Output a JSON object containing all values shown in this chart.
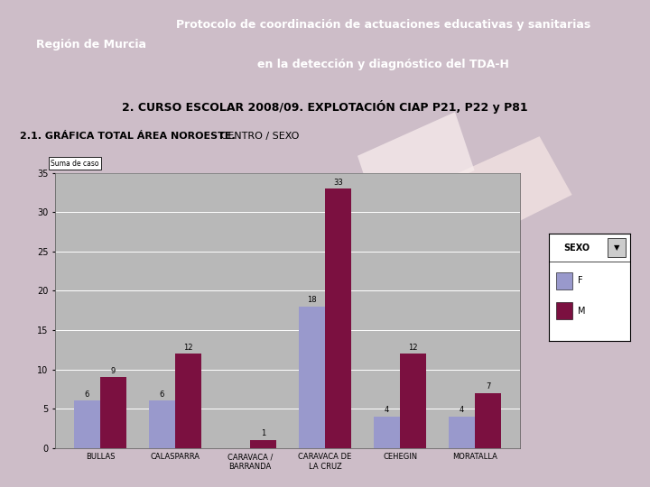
{
  "title_line1": "Protocolo de coordinación de actuaciones educativas y sanitarias",
  "title_line2": "en la detección y diagnóstico del TDA-H",
  "region_label": "Región de Murcia",
  "subtitle": "2. CURSO ESCOLAR 2008/09. EXPLOTACIÓN CIAP P21, P22 y P81",
  "chart_title_bold": "2.1. GRÁFICA TOTAL ÁREA NOROESTE.",
  "chart_title_normal": " CENTRO / SEXO",
  "ylabel": "Suma de caso",
  "categories": [
    "BULLAS",
    "CALASPARRA",
    "CARAVACA /\nBARRANDA",
    "CARAVACA DE\nLA CRUZ",
    "CEHEGIN",
    "MORATALLA"
  ],
  "F_values": [
    6,
    6,
    0,
    18,
    4,
    4
  ],
  "M_values": [
    9,
    12,
    1,
    33,
    12,
    7
  ],
  "F_color": "#9999cc",
  "M_color": "#7b1040",
  "header_bg": "#1155a0",
  "header_text_color": "#ffffff",
  "subtitle_bg": "#1155a0",
  "plot_bg": "#b8b8b8",
  "ylim": [
    0,
    35
  ],
  "yticks": [
    0,
    5,
    10,
    15,
    20,
    25,
    30,
    35
  ],
  "legend_sexo": "SEXO",
  "legend_F": "F",
  "legend_M": "M",
  "page_bg": "#cdbdc8"
}
